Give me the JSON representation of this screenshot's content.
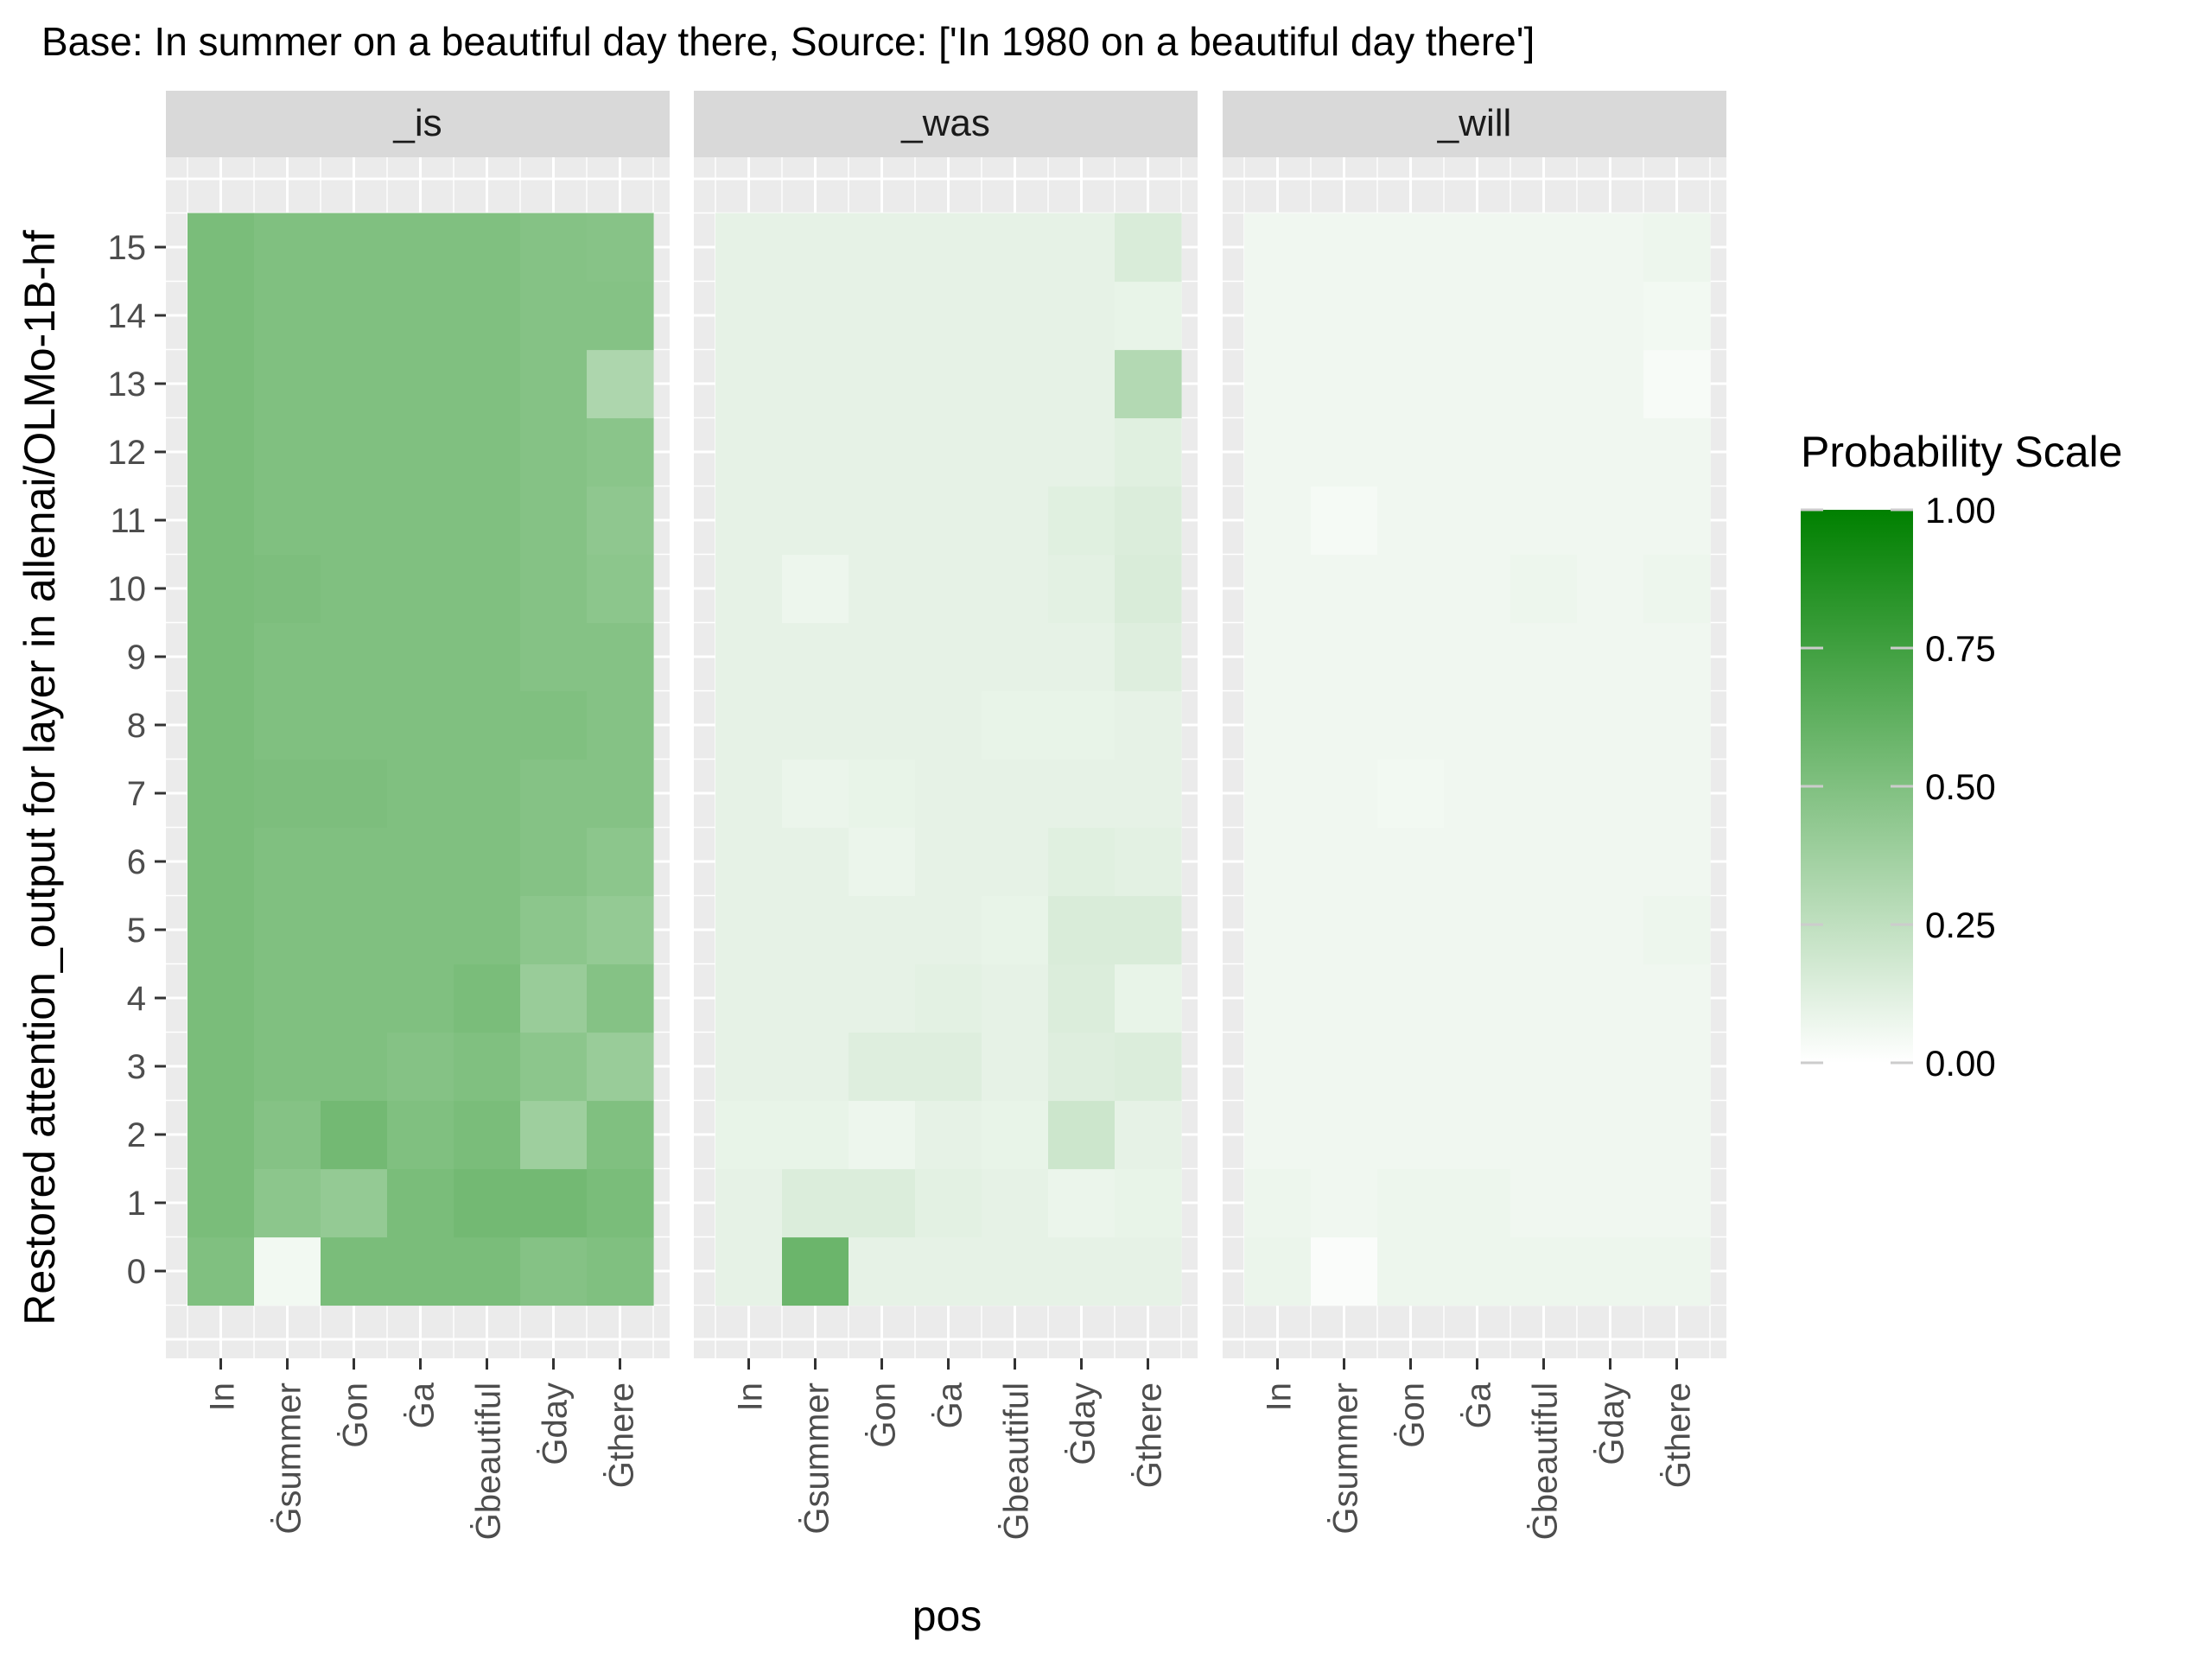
{
  "chart_data": {
    "type": "heatmap",
    "title": "Base: In summer on a beautiful day there, Source: ['In 1980 on a beautiful day there']",
    "xlabel": "pos",
    "ylabel": "Restored attention_output for layer in allenai/OLMo-1B-hf",
    "x_categories": [
      "In",
      "Ġsummer",
      "Ġon",
      "Ġa",
      "Ġbeautiful",
      "Ġday",
      "Ġthere"
    ],
    "y_categories": [
      "0",
      "1",
      "2",
      "3",
      "4",
      "5",
      "6",
      "7",
      "8",
      "9",
      "10",
      "11",
      "12",
      "13",
      "14",
      "15"
    ],
    "grid": true,
    "legend": {
      "title": "Probability Scale",
      "placement": "right",
      "range": [
        0,
        1
      ],
      "ticks": [
        "0.00",
        "0.25",
        "0.50",
        "0.75",
        "1.00"
      ],
      "colors": {
        "low": "#ffffff",
        "high": "#008000"
      }
    },
    "panels": [
      {
        "name": "_is",
        "values": [
          [
            0.5,
            0.05,
            0.52,
            0.52,
            0.52,
            0.48,
            0.5
          ],
          [
            0.52,
            0.45,
            0.42,
            0.52,
            0.55,
            0.55,
            0.52
          ],
          [
            0.52,
            0.48,
            0.55,
            0.5,
            0.52,
            0.38,
            0.5
          ],
          [
            0.52,
            0.5,
            0.5,
            0.48,
            0.5,
            0.45,
            0.4
          ],
          [
            0.52,
            0.5,
            0.5,
            0.5,
            0.52,
            0.4,
            0.48
          ],
          [
            0.52,
            0.5,
            0.5,
            0.5,
            0.5,
            0.45,
            0.42
          ],
          [
            0.52,
            0.5,
            0.5,
            0.5,
            0.5,
            0.48,
            0.45
          ],
          [
            0.52,
            0.51,
            0.51,
            0.5,
            0.5,
            0.48,
            0.48
          ],
          [
            0.52,
            0.5,
            0.5,
            0.5,
            0.5,
            0.5,
            0.48
          ],
          [
            0.52,
            0.5,
            0.5,
            0.5,
            0.5,
            0.48,
            0.48
          ],
          [
            0.52,
            0.51,
            0.5,
            0.5,
            0.5,
            0.48,
            0.45
          ],
          [
            0.52,
            0.5,
            0.5,
            0.5,
            0.5,
            0.48,
            0.44
          ],
          [
            0.52,
            0.5,
            0.5,
            0.5,
            0.5,
            0.48,
            0.46
          ],
          [
            0.52,
            0.5,
            0.5,
            0.5,
            0.5,
            0.48,
            0.32
          ],
          [
            0.52,
            0.5,
            0.5,
            0.5,
            0.5,
            0.48,
            0.48
          ],
          [
            0.52,
            0.5,
            0.5,
            0.5,
            0.5,
            0.48,
            0.47
          ]
        ]
      },
      {
        "name": "_was",
        "values": [
          [
            0.1,
            0.58,
            0.1,
            0.1,
            0.1,
            0.1,
            0.1
          ],
          [
            0.1,
            0.14,
            0.14,
            0.11,
            0.1,
            0.08,
            0.09
          ],
          [
            0.09,
            0.09,
            0.07,
            0.1,
            0.09,
            0.2,
            0.1
          ],
          [
            0.1,
            0.1,
            0.13,
            0.13,
            0.1,
            0.13,
            0.14
          ],
          [
            0.1,
            0.1,
            0.1,
            0.11,
            0.1,
            0.14,
            0.09
          ],
          [
            0.1,
            0.1,
            0.1,
            0.1,
            0.09,
            0.15,
            0.15
          ],
          [
            0.1,
            0.1,
            0.08,
            0.1,
            0.1,
            0.12,
            0.11
          ],
          [
            0.1,
            0.08,
            0.09,
            0.1,
            0.1,
            0.1,
            0.1
          ],
          [
            0.1,
            0.1,
            0.1,
            0.1,
            0.09,
            0.09,
            0.1
          ],
          [
            0.1,
            0.1,
            0.1,
            0.1,
            0.1,
            0.1,
            0.13
          ],
          [
            0.1,
            0.07,
            0.1,
            0.1,
            0.1,
            0.11,
            0.15
          ],
          [
            0.1,
            0.1,
            0.1,
            0.1,
            0.1,
            0.12,
            0.14
          ],
          [
            0.1,
            0.1,
            0.1,
            0.1,
            0.1,
            0.1,
            0.12
          ],
          [
            0.1,
            0.1,
            0.1,
            0.1,
            0.1,
            0.1,
            0.3
          ],
          [
            0.1,
            0.1,
            0.1,
            0.1,
            0.1,
            0.1,
            0.09
          ],
          [
            0.1,
            0.1,
            0.1,
            0.1,
            0.1,
            0.1,
            0.15
          ]
        ]
      },
      {
        "name": "_will",
        "values": [
          [
            0.08,
            0.02,
            0.07,
            0.07,
            0.07,
            0.07,
            0.07
          ],
          [
            0.07,
            0.06,
            0.07,
            0.07,
            0.06,
            0.06,
            0.06
          ],
          [
            0.06,
            0.06,
            0.06,
            0.06,
            0.06,
            0.06,
            0.06
          ],
          [
            0.06,
            0.06,
            0.06,
            0.06,
            0.06,
            0.06,
            0.06
          ],
          [
            0.06,
            0.06,
            0.06,
            0.06,
            0.06,
            0.06,
            0.06
          ],
          [
            0.06,
            0.06,
            0.06,
            0.06,
            0.06,
            0.06,
            0.07
          ],
          [
            0.06,
            0.06,
            0.06,
            0.06,
            0.06,
            0.06,
            0.06
          ],
          [
            0.06,
            0.06,
            0.05,
            0.06,
            0.06,
            0.06,
            0.06
          ],
          [
            0.06,
            0.06,
            0.06,
            0.06,
            0.06,
            0.06,
            0.06
          ],
          [
            0.06,
            0.06,
            0.06,
            0.06,
            0.06,
            0.06,
            0.06
          ],
          [
            0.06,
            0.06,
            0.06,
            0.06,
            0.07,
            0.06,
            0.07
          ],
          [
            0.06,
            0.04,
            0.06,
            0.06,
            0.06,
            0.06,
            0.06
          ],
          [
            0.06,
            0.06,
            0.06,
            0.06,
            0.06,
            0.06,
            0.06
          ],
          [
            0.06,
            0.06,
            0.06,
            0.06,
            0.06,
            0.06,
            0.03
          ],
          [
            0.06,
            0.06,
            0.06,
            0.06,
            0.06,
            0.06,
            0.05
          ],
          [
            0.06,
            0.06,
            0.06,
            0.06,
            0.06,
            0.06,
            0.07
          ]
        ]
      }
    ]
  }
}
